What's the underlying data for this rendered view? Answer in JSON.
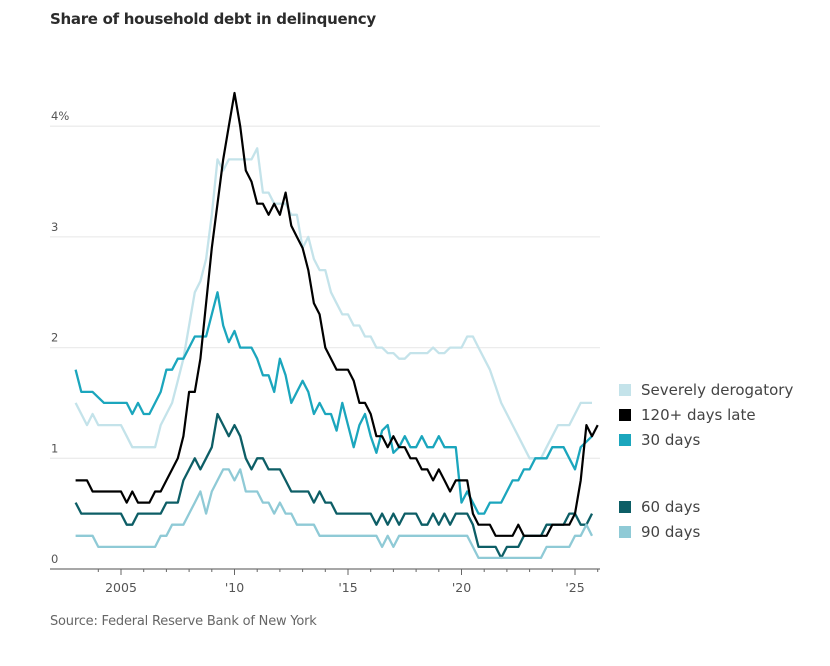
{
  "title": "Share of household debt in delinquency",
  "source": "Source: Federal Reserve Bank of New York",
  "chart_data": {
    "type": "line",
    "title": "Share of household debt in delinquency",
    "xlabel": "",
    "ylabel": "",
    "xlim": [
      2002.8,
      2026.1
    ],
    "ylim": [
      0,
      4.3
    ],
    "y_ticks": [
      0,
      1,
      2,
      3,
      4
    ],
    "y_tick_labels": [
      "0",
      "1",
      "2",
      "3",
      "4%"
    ],
    "x_ticks": [
      2005,
      2010,
      2015,
      2020,
      2025
    ],
    "x_tick_labels": [
      "2005",
      "'10",
      "'15",
      "'20",
      "'25"
    ],
    "grid": true,
    "legend_position": "right",
    "x_start": 2003.0,
    "x_step": 0.25,
    "series": [
      {
        "name": "Severely derogatory",
        "color": "#c4e3ea",
        "values": [
          1.5,
          1.4,
          1.3,
          1.4,
          1.3,
          1.3,
          1.3,
          1.3,
          1.3,
          1.2,
          1.1,
          1.1,
          1.1,
          1.1,
          1.1,
          1.3,
          1.4,
          1.5,
          1.7,
          1.9,
          2.2,
          2.5,
          2.6,
          2.8,
          3.2,
          3.7,
          3.6,
          3.7,
          3.7,
          3.7,
          3.7,
          3.7,
          3.8,
          3.4,
          3.4,
          3.3,
          3.3,
          3.3,
          3.2,
          3.2,
          2.9,
          3.0,
          2.8,
          2.7,
          2.7,
          2.5,
          2.4,
          2.3,
          2.3,
          2.2,
          2.2,
          2.1,
          2.1,
          2.0,
          2.0,
          1.95,
          1.95,
          1.9,
          1.9,
          1.95,
          1.95,
          1.95,
          1.95,
          2.0,
          1.95,
          1.95,
          2.0,
          2.0,
          2.0,
          2.1,
          2.1,
          2.0,
          1.9,
          1.8,
          1.65,
          1.5,
          1.4,
          1.3,
          1.2,
          1.1,
          1.0,
          1.0,
          1.0,
          1.1,
          1.2,
          1.3,
          1.3,
          1.3,
          1.4,
          1.5,
          1.5,
          1.5
        ]
      },
      {
        "name": "120+ days late",
        "color": "#000000",
        "values": [
          0.8,
          0.8,
          0.8,
          0.7,
          0.7,
          0.7,
          0.7,
          0.7,
          0.7,
          0.6,
          0.7,
          0.6,
          0.6,
          0.6,
          0.7,
          0.7,
          0.8,
          0.9,
          1.0,
          1.2,
          1.6,
          1.6,
          1.9,
          2.4,
          2.9,
          3.3,
          3.7,
          4.0,
          4.3,
          4.0,
          3.6,
          3.5,
          3.3,
          3.3,
          3.2,
          3.3,
          3.2,
          3.4,
          3.1,
          3.0,
          2.9,
          2.7,
          2.4,
          2.3,
          2.0,
          1.9,
          1.8,
          1.8,
          1.8,
          1.7,
          1.5,
          1.5,
          1.4,
          1.2,
          1.2,
          1.1,
          1.2,
          1.1,
          1.1,
          1.0,
          1.0,
          0.9,
          0.9,
          0.8,
          0.9,
          0.8,
          0.7,
          0.8,
          0.8,
          0.8,
          0.5,
          0.4,
          0.4,
          0.4,
          0.3,
          0.3,
          0.3,
          0.3,
          0.4,
          0.3,
          0.3,
          0.3,
          0.3,
          0.3,
          0.4,
          0.4,
          0.4,
          0.4,
          0.5,
          0.8,
          1.3,
          1.2,
          1.3
        ]
      },
      {
        "name": "30 days",
        "color": "#1ba6bd",
        "values": [
          1.8,
          1.6,
          1.6,
          1.6,
          1.55,
          1.5,
          1.5,
          1.5,
          1.5,
          1.5,
          1.4,
          1.5,
          1.4,
          1.4,
          1.5,
          1.6,
          1.8,
          1.8,
          1.9,
          1.9,
          2.0,
          2.1,
          2.1,
          2.1,
          2.3,
          2.5,
          2.2,
          2.05,
          2.15,
          2.0,
          2.0,
          2.0,
          1.9,
          1.75,
          1.75,
          1.6,
          1.9,
          1.75,
          1.5,
          1.6,
          1.7,
          1.6,
          1.4,
          1.5,
          1.4,
          1.4,
          1.25,
          1.5,
          1.3,
          1.1,
          1.3,
          1.4,
          1.2,
          1.05,
          1.25,
          1.3,
          1.05,
          1.1,
          1.2,
          1.1,
          1.1,
          1.2,
          1.1,
          1.1,
          1.2,
          1.1,
          1.1,
          1.1,
          0.6,
          0.7,
          0.6,
          0.5,
          0.5,
          0.6,
          0.6,
          0.6,
          0.7,
          0.8,
          0.8,
          0.9,
          0.9,
          1.0,
          1.0,
          1.0,
          1.1,
          1.1,
          1.1,
          1.0,
          0.9,
          1.1,
          1.15,
          1.2
        ]
      },
      {
        "name": "60 days",
        "color": "#0d5e66",
        "values": [
          0.6,
          0.5,
          0.5,
          0.5,
          0.5,
          0.5,
          0.5,
          0.5,
          0.5,
          0.4,
          0.4,
          0.5,
          0.5,
          0.5,
          0.5,
          0.5,
          0.6,
          0.6,
          0.6,
          0.8,
          0.9,
          1.0,
          0.9,
          1.0,
          1.1,
          1.4,
          1.3,
          1.2,
          1.3,
          1.2,
          1.0,
          0.9,
          1.0,
          1.0,
          0.9,
          0.9,
          0.9,
          0.8,
          0.7,
          0.7,
          0.7,
          0.7,
          0.6,
          0.7,
          0.6,
          0.6,
          0.5,
          0.5,
          0.5,
          0.5,
          0.5,
          0.5,
          0.5,
          0.4,
          0.5,
          0.4,
          0.5,
          0.4,
          0.5,
          0.5,
          0.5,
          0.4,
          0.4,
          0.5,
          0.4,
          0.5,
          0.4,
          0.5,
          0.5,
          0.5,
          0.4,
          0.2,
          0.2,
          0.2,
          0.2,
          0.1,
          0.2,
          0.2,
          0.2,
          0.3,
          0.3,
          0.3,
          0.3,
          0.4,
          0.4,
          0.4,
          0.4,
          0.5,
          0.5,
          0.4,
          0.4,
          0.5
        ]
      },
      {
        "name": "90 days",
        "color": "#8fcad6",
        "values": [
          0.3,
          0.3,
          0.3,
          0.3,
          0.2,
          0.2,
          0.2,
          0.2,
          0.2,
          0.2,
          0.2,
          0.2,
          0.2,
          0.2,
          0.2,
          0.3,
          0.3,
          0.4,
          0.4,
          0.4,
          0.5,
          0.6,
          0.7,
          0.5,
          0.7,
          0.8,
          0.9,
          0.9,
          0.8,
          0.9,
          0.7,
          0.7,
          0.7,
          0.6,
          0.6,
          0.5,
          0.6,
          0.5,
          0.5,
          0.4,
          0.4,
          0.4,
          0.4,
          0.3,
          0.3,
          0.3,
          0.3,
          0.3,
          0.3,
          0.3,
          0.3,
          0.3,
          0.3,
          0.3,
          0.2,
          0.3,
          0.2,
          0.3,
          0.3,
          0.3,
          0.3,
          0.3,
          0.3,
          0.3,
          0.3,
          0.3,
          0.3,
          0.3,
          0.3,
          0.3,
          0.2,
          0.1,
          0.1,
          0.1,
          0.1,
          0.1,
          0.1,
          0.1,
          0.1,
          0.1,
          0.1,
          0.1,
          0.1,
          0.2,
          0.2,
          0.2,
          0.2,
          0.2,
          0.3,
          0.3,
          0.4,
          0.3
        ]
      }
    ]
  },
  "legend": [
    {
      "label": "Severely derogatory",
      "color": "#c4e3ea"
    },
    {
      "label": "120+ days late",
      "color": "#000000"
    },
    {
      "label": "30 days",
      "color": "#1ba6bd"
    },
    {
      "label": "60 days",
      "color": "#0d5e66"
    },
    {
      "label": "90 days",
      "color": "#8fcad6"
    }
  ]
}
